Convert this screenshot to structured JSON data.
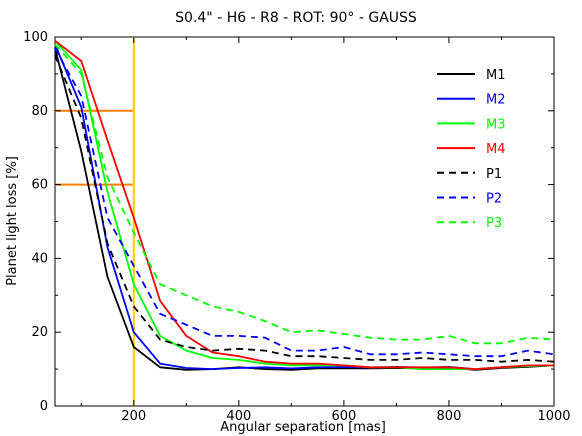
{
  "chart_data": {
    "type": "line",
    "title": "S0.4\" - H6 - R8 - ROT: 90° - GAUSS",
    "xlabel": "Angular separation [mas]",
    "ylabel": "Planet light loss [%]",
    "xlim": [
      50,
      1000
    ],
    "ylim": [
      0,
      100
    ],
    "xticks": [
      200,
      400,
      600,
      800,
      1000
    ],
    "yticks": [
      0,
      20,
      40,
      60,
      80,
      100
    ],
    "grid": false,
    "legend_position": "top-right",
    "x": [
      50,
      100,
      150,
      200,
      250,
      300,
      350,
      400,
      450,
      500,
      550,
      600,
      650,
      700,
      750,
      800,
      850,
      900,
      950,
      1000
    ],
    "series": [
      {
        "name": "M1",
        "color": "#000000",
        "dash": "solid",
        "values": [
          97,
          69,
          35,
          16,
          10.5,
          9.8,
          10,
          10.5,
          10,
          9.8,
          10.2,
          10.2,
          10.2,
          10.3,
          10.2,
          10.4,
          9.8,
          10.3,
          10.6,
          11
        ]
      },
      {
        "name": "M2",
        "color": "#0000ff",
        "dash": "solid",
        "values": [
          98,
          81,
          43,
          20,
          11.5,
          10.3,
          10,
          10.3,
          10.5,
          10.2,
          10.5,
          10.6,
          10.4,
          10.6,
          10.4,
          10.6,
          10,
          10.5,
          10.8,
          11
        ]
      },
      {
        "name": "M3",
        "color": "#00ff00",
        "dash": "solid",
        "values": [
          99,
          91,
          58,
          33,
          19,
          15,
          13,
          12.5,
          11.5,
          11,
          11,
          11,
          10.5,
          10.5,
          10,
          10,
          10,
          10.5,
          10.8,
          11
        ]
      },
      {
        "name": "M4",
        "color": "#ff0000",
        "dash": "solid",
        "values": [
          99,
          93.5,
          72,
          51,
          28.5,
          19,
          14.5,
          13.5,
          12,
          11.5,
          11.5,
          11,
          10.5,
          10.5,
          10.5,
          10.5,
          10,
          10.5,
          11,
          11
        ]
      },
      {
        "name": "P1",
        "color": "#000000",
        "dash": "dashed",
        "values": [
          95,
          78,
          44,
          27,
          18,
          16,
          15,
          15.5,
          15,
          13.5,
          13.5,
          13,
          12.5,
          12.5,
          13,
          12.5,
          12.5,
          12,
          12.5,
          12
        ]
      },
      {
        "name": "P2",
        "color": "#0000ff",
        "dash": "dashed",
        "values": [
          97,
          84,
          51,
          38,
          25,
          22,
          19,
          19,
          18.5,
          15,
          15,
          16,
          14,
          14,
          14.5,
          14,
          13.5,
          13.5,
          15,
          14
        ]
      },
      {
        "name": "P3",
        "color": "#00ff00",
        "dash": "dashed",
        "values": [
          98,
          90,
          62,
          47,
          33,
          30,
          27,
          25.5,
          23,
          20,
          20.5,
          19.5,
          18.5,
          18,
          18,
          19,
          17,
          17,
          18.5,
          18
        ]
      }
    ],
    "reference_lines": {
      "vertical": {
        "x": 200,
        "color": "#ffcc00"
      },
      "horizontal": [
        {
          "y": 80,
          "x_from": 50,
          "x_to": 200,
          "color": "#ff7f00"
        },
        {
          "y": 60,
          "x_from": 50,
          "x_to": 200,
          "color": "#ff7f00"
        }
      ]
    }
  }
}
